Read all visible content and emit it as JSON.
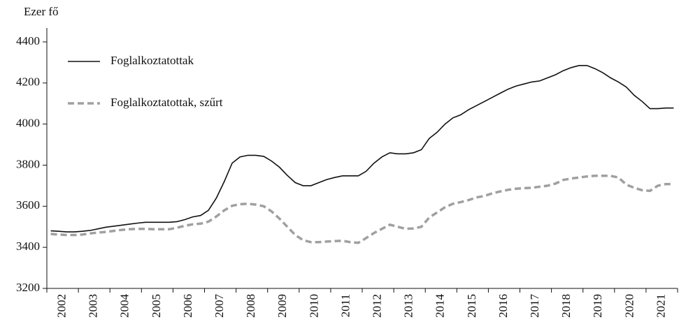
{
  "chart_data": {
    "type": "line",
    "y_axis_label": "Ezer fő",
    "categories": [
      "2002",
      null,
      null,
      null,
      "2003",
      null,
      null,
      null,
      "2004",
      null,
      null,
      null,
      "2005",
      null,
      null,
      null,
      "2006",
      null,
      null,
      null,
      "2007",
      null,
      null,
      null,
      "2008",
      null,
      null,
      null,
      "2009",
      null,
      null,
      null,
      "2010",
      null,
      null,
      null,
      "2011",
      null,
      null,
      null,
      "2012",
      null,
      null,
      null,
      "2013",
      null,
      null,
      null,
      "2014",
      null,
      null,
      null,
      "2015",
      null,
      null,
      null,
      "2016",
      null,
      null,
      null,
      "2017",
      null,
      null,
      null,
      "2018",
      null,
      null,
      null,
      "2019",
      null,
      null,
      null,
      "2020",
      null,
      null,
      null,
      "2021",
      null,
      null,
      null
    ],
    "series": [
      {
        "name": "Foglalkoztatottak",
        "color": "#111111",
        "dashed": false,
        "values": [
          3480,
          3478,
          3475,
          3475,
          3478,
          3482,
          3490,
          3498,
          3503,
          3508,
          3513,
          3518,
          3522,
          3522,
          3522,
          3522,
          3525,
          3535,
          3548,
          3555,
          3580,
          3640,
          3720,
          3810,
          3840,
          3848,
          3848,
          3843,
          3820,
          3790,
          3750,
          3715,
          3700,
          3700,
          3715,
          3730,
          3740,
          3748,
          3748,
          3748,
          3770,
          3810,
          3840,
          3860,
          3855,
          3855,
          3860,
          3875,
          3930,
          3960,
          4000,
          4030,
          4045,
          4070,
          4090,
          4110,
          4130,
          4150,
          4170,
          4185,
          4195,
          4205,
          4210,
          4225,
          4240,
          4260,
          4275,
          4285,
          4285,
          4270,
          4250,
          4225,
          4205,
          4180,
          4140,
          4110,
          4075,
          4075,
          4078,
          4078
        ]
      },
      {
        "name": "Foglalkoztatottak, szűrt",
        "color": "#a0a0a0",
        "dashed": true,
        "values": [
          3465,
          3462,
          3460,
          3460,
          3462,
          3468,
          3472,
          3475,
          3480,
          3485,
          3488,
          3490,
          3490,
          3488,
          3488,
          3488,
          3495,
          3505,
          3512,
          3515,
          3525,
          3550,
          3580,
          3602,
          3610,
          3612,
          3608,
          3600,
          3575,
          3540,
          3500,
          3460,
          3435,
          3425,
          3425,
          3428,
          3430,
          3432,
          3425,
          3422,
          3445,
          3470,
          3490,
          3510,
          3500,
          3490,
          3492,
          3500,
          3545,
          3570,
          3595,
          3612,
          3620,
          3630,
          3643,
          3650,
          3663,
          3672,
          3680,
          3685,
          3688,
          3690,
          3695,
          3700,
          3710,
          3728,
          3735,
          3740,
          3745,
          3748,
          3748,
          3748,
          3740,
          3705,
          3690,
          3678,
          3675,
          3700,
          3708,
          3708
        ]
      }
    ],
    "ylim": [
      3200,
      4400
    ],
    "yticks": [
      3200,
      3400,
      3600,
      3800,
      4000,
      4200,
      4400
    ],
    "grid": false,
    "legend": "top-left"
  }
}
